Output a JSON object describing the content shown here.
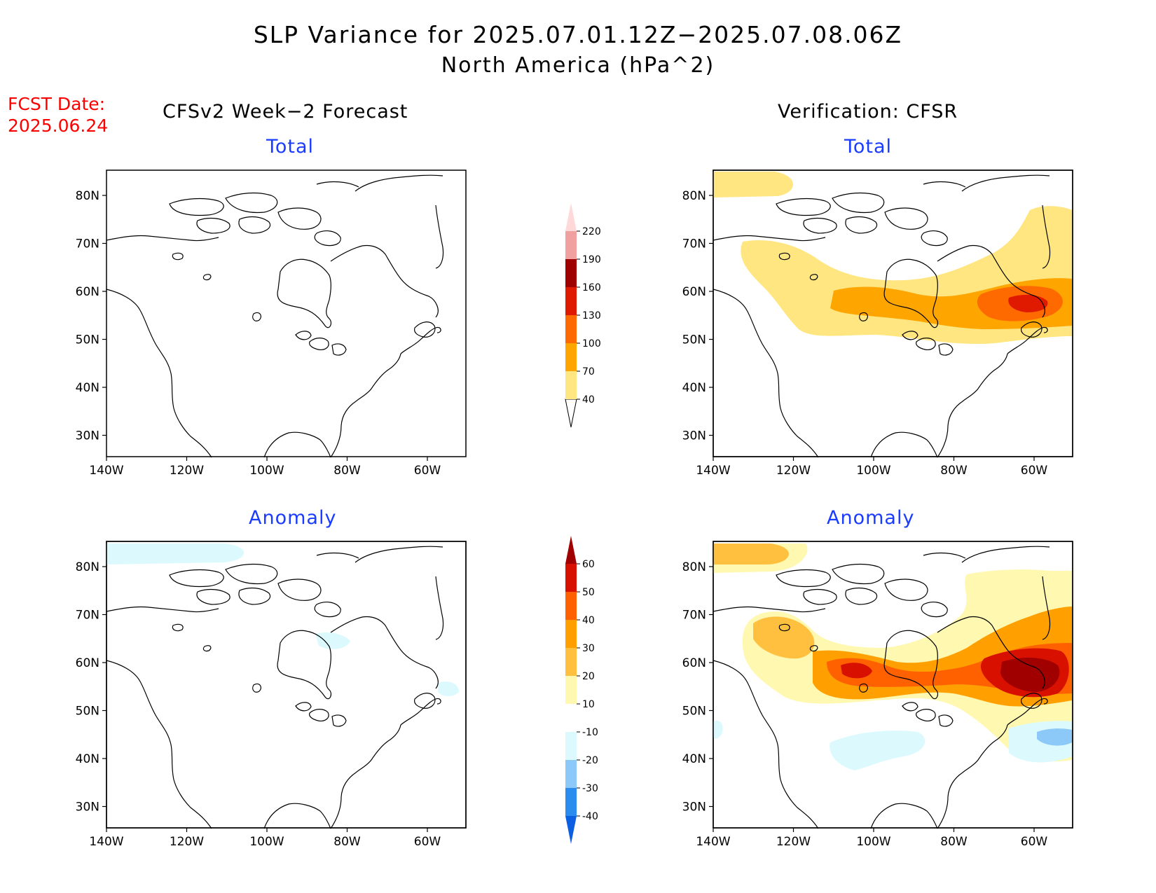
{
  "title": "SLP Variance for 2025.07.01.12Z−2025.07.08.06Z",
  "subtitle": "North America (hPa^2)",
  "fcst_date_label": "FCST Date:",
  "fcst_date_value": "2025.06.24",
  "left_column_title": "CFSv2 Week−2 Forecast",
  "right_column_title": "Verification: CFSR",
  "panels": {
    "top_left_title": "Total",
    "top_right_title": "Total",
    "bottom_left_title": "Anomaly",
    "bottom_right_title": "Anomaly"
  },
  "map_axes": {
    "lat_labels": [
      "80N",
      "70N",
      "60N",
      "50N",
      "40N",
      "30N"
    ],
    "lon_labels": [
      "140W",
      "120W",
      "100W",
      "80W",
      "60W"
    ]
  },
  "total_colorbar": {
    "levels": [
      "40",
      "70",
      "100",
      "130",
      "160",
      "190",
      "220"
    ],
    "colors": [
      "#ffe680",
      "#ffa500",
      "#ff6a00",
      "#e01a00",
      "#9e0000",
      "#f0a0a0",
      "#ffd8d8"
    ]
  },
  "anomaly_colorbar": {
    "levels": [
      "-40",
      "-30",
      "-20",
      "-10",
      "10",
      "20",
      "30",
      "40",
      "50",
      "60"
    ],
    "colors": [
      "#0c5fe0",
      "#2b8cf0",
      "#8cc8f8",
      "#dcfafe",
      "#ffffff",
      "#fff8b0",
      "#ffc040",
      "#ffa000",
      "#ff6000",
      "#d81000",
      "#a00000"
    ]
  }
}
